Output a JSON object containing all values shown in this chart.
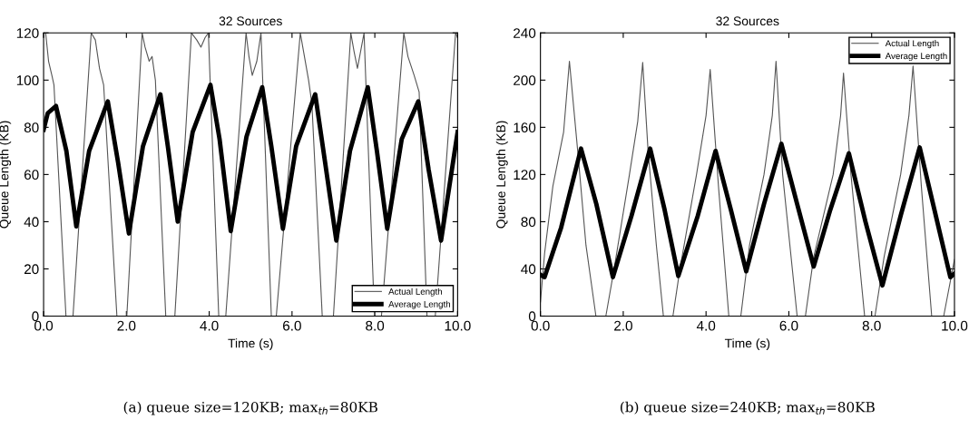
{
  "chart_data": [
    {
      "type": "line",
      "title": "32 Sources",
      "xlabel": "Time (s)",
      "ylabel": "Queue Length (KB)",
      "xlim": [
        0,
        10
      ],
      "ylim": [
        0,
        120
      ],
      "xticks": [
        {
          "value": 0,
          "label": "0.0"
        },
        {
          "value": 2,
          "label": "2.0"
        },
        {
          "value": 4,
          "label": "4.0"
        },
        {
          "value": 6,
          "label": "6.0"
        },
        {
          "value": 8,
          "label": "8.0"
        },
        {
          "value": 10,
          "label": "10.0"
        }
      ],
      "yticks": [
        0,
        20,
        40,
        60,
        80,
        100,
        120
      ],
      "legend": "bottom right",
      "grid": false,
      "series": [
        {
          "name": "Actual Length",
          "color": "#555555",
          "x": [
            0.05,
            0.12,
            0.2,
            0.25,
            0.54,
            0.71,
            1.15,
            1.25,
            1.35,
            1.45,
            1.77,
            2.01,
            2.38,
            2.45,
            2.55,
            2.62,
            2.7,
            2.95,
            3.17,
            3.57,
            3.7,
            3.8,
            3.9,
            3.98,
            4.23,
            4.4,
            4.89,
            4.96,
            5.04,
            5.15,
            5.25,
            5.5,
            5.62,
            6.2,
            6.3,
            6.4,
            6.48,
            6.73,
            7.0,
            7.42,
            7.5,
            7.58,
            7.74,
            7.99,
            8.16,
            8.7,
            8.8,
            8.95,
            9.07,
            9.26,
            9.46,
            9.95,
            10.0
          ],
          "values": [
            120,
            108,
            102,
            98,
            0,
            0,
            120,
            117,
            105,
            98,
            0,
            0,
            120,
            114,
            108,
            110,
            100,
            0,
            0,
            120,
            117,
            114,
            118,
            120,
            0,
            0,
            120,
            110,
            102,
            108,
            120,
            0,
            0,
            120,
            110,
            100,
            90,
            0,
            0,
            120,
            112,
            105,
            120,
            0,
            0,
            120,
            110,
            102,
            95,
            0,
            0,
            120,
            118
          ]
        },
        {
          "name": "Average Length",
          "color": "#000000",
          "x": [
            0.0,
            0.1,
            0.3,
            0.55,
            0.79,
            1.1,
            1.55,
            1.8,
            2.06,
            2.4,
            2.82,
            3.0,
            3.24,
            3.6,
            4.03,
            4.25,
            4.52,
            4.9,
            5.28,
            5.5,
            5.78,
            6.1,
            6.56,
            6.8,
            7.07,
            7.4,
            7.83,
            8.05,
            8.3,
            8.65,
            9.05,
            9.3,
            9.6,
            10.0
          ],
          "values": [
            79,
            86,
            89,
            70,
            38,
            70,
            91,
            65,
            35,
            72,
            94,
            72,
            40,
            78,
            98,
            75,
            36,
            76,
            97,
            72,
            37,
            72,
            94,
            65,
            32,
            70,
            97,
            70,
            37,
            75,
            91,
            62,
            32,
            78
          ]
        }
      ],
      "annotations": [
        "(a) queue size=120KB; max$_{th}$=80KB"
      ]
    },
    {
      "type": "line",
      "title": "32 Sources",
      "xlabel": "Time (s)",
      "ylabel": "Queue Length (KB)",
      "xlim": [
        0,
        10
      ],
      "ylim": [
        0,
        240
      ],
      "xticks": [
        {
          "value": 0,
          "label": "0.0"
        },
        {
          "value": 2,
          "label": "2.0"
        },
        {
          "value": 4,
          "label": "4.0"
        },
        {
          "value": 6,
          "label": "6.0"
        },
        {
          "value": 8,
          "label": "8.0"
        },
        {
          "value": 10,
          "label": "10.0"
        }
      ],
      "yticks": [
        0,
        40,
        80,
        120,
        160,
        200,
        240
      ],
      "legend": "top right",
      "grid": false,
      "series": [
        {
          "name": "Actual Length",
          "color": "#555555",
          "x": [
            0.0,
            0.1,
            0.3,
            0.56,
            0.7,
            0.9,
            1.1,
            1.34,
            1.58,
            1.78,
            2.15,
            2.35,
            2.47,
            2.6,
            2.8,
            2.97,
            3.2,
            3.37,
            3.77,
            4.0,
            4.1,
            4.3,
            4.55,
            4.84,
            5.05,
            5.4,
            5.6,
            5.69,
            5.85,
            6.2,
            6.4,
            6.6,
            7.07,
            7.25,
            7.32,
            7.5,
            7.83,
            8.08,
            8.3,
            8.7,
            8.9,
            9.0,
            9.2,
            9.45,
            9.74,
            10.0
          ],
          "values": [
            12,
            53,
            110,
            156,
            216,
            140,
            60,
            0,
            0,
            40,
            120,
            165,
            215,
            140,
            60,
            0,
            0,
            40,
            120,
            170,
            209,
            110,
            0,
            0,
            60,
            120,
            170,
            216,
            120,
            0,
            0,
            50,
            120,
            170,
            206,
            120,
            0,
            0,
            50,
            120,
            170,
            212,
            110,
            0,
            0,
            48
          ]
        },
        {
          "name": "Average Length",
          "color": "#000000",
          "x": [
            0.0,
            0.1,
            0.5,
            0.98,
            1.35,
            1.75,
            2.2,
            2.65,
            3.0,
            3.33,
            3.8,
            4.23,
            4.6,
            4.97,
            5.4,
            5.82,
            6.2,
            6.6,
            7.0,
            7.45,
            7.85,
            8.26,
            8.7,
            9.16,
            9.55,
            9.9,
            10.0
          ],
          "values": [
            35,
            33,
            75,
            142,
            95,
            33,
            85,
            142,
            90,
            34,
            85,
            140,
            90,
            38,
            95,
            146,
            95,
            42,
            90,
            138,
            80,
            26,
            85,
            143,
            85,
            33,
            36
          ]
        }
      ],
      "annotations": [
        "(b) queue size=240KB; max$_{th}$=80KB"
      ]
    }
  ]
}
